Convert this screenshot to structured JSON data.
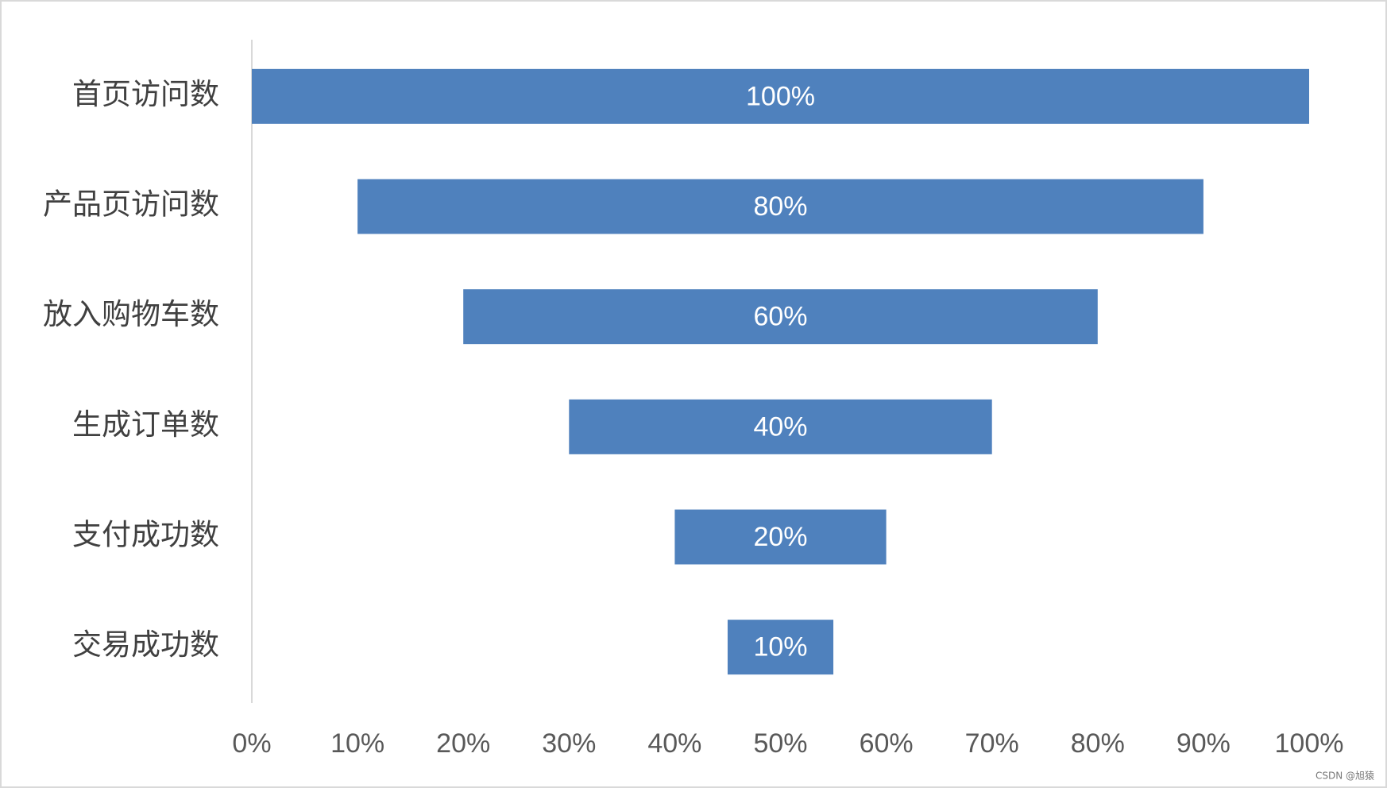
{
  "chart_data": {
    "type": "funnel",
    "categories": [
      "首页访问数",
      "产品页访问数",
      "放入购物车数",
      "生成订单数",
      "支付成功数",
      "交易成功数"
    ],
    "values": [
      100,
      80,
      60,
      40,
      20,
      10
    ],
    "value_labels": [
      "100%",
      "80%",
      "60%",
      "40%",
      "20%",
      "10%"
    ],
    "color": "#4f81bd",
    "xlim": [
      0,
      100
    ],
    "xticks": [
      {
        "value": 0,
        "label": "0%"
      },
      {
        "value": 10,
        "label": "10%"
      },
      {
        "value": 20,
        "label": "20%"
      },
      {
        "value": 30,
        "label": "30%"
      },
      {
        "value": 40,
        "label": "40%"
      },
      {
        "value": 50,
        "label": "50%"
      },
      {
        "value": 60,
        "label": "60%"
      },
      {
        "value": 70,
        "label": "70%"
      },
      {
        "value": 80,
        "label": "80%"
      },
      {
        "value": 90,
        "label": "90%"
      },
      {
        "value": 100,
        "label": "100%"
      }
    ],
    "grid": false,
    "watermark": "CSDN @旭猿"
  }
}
